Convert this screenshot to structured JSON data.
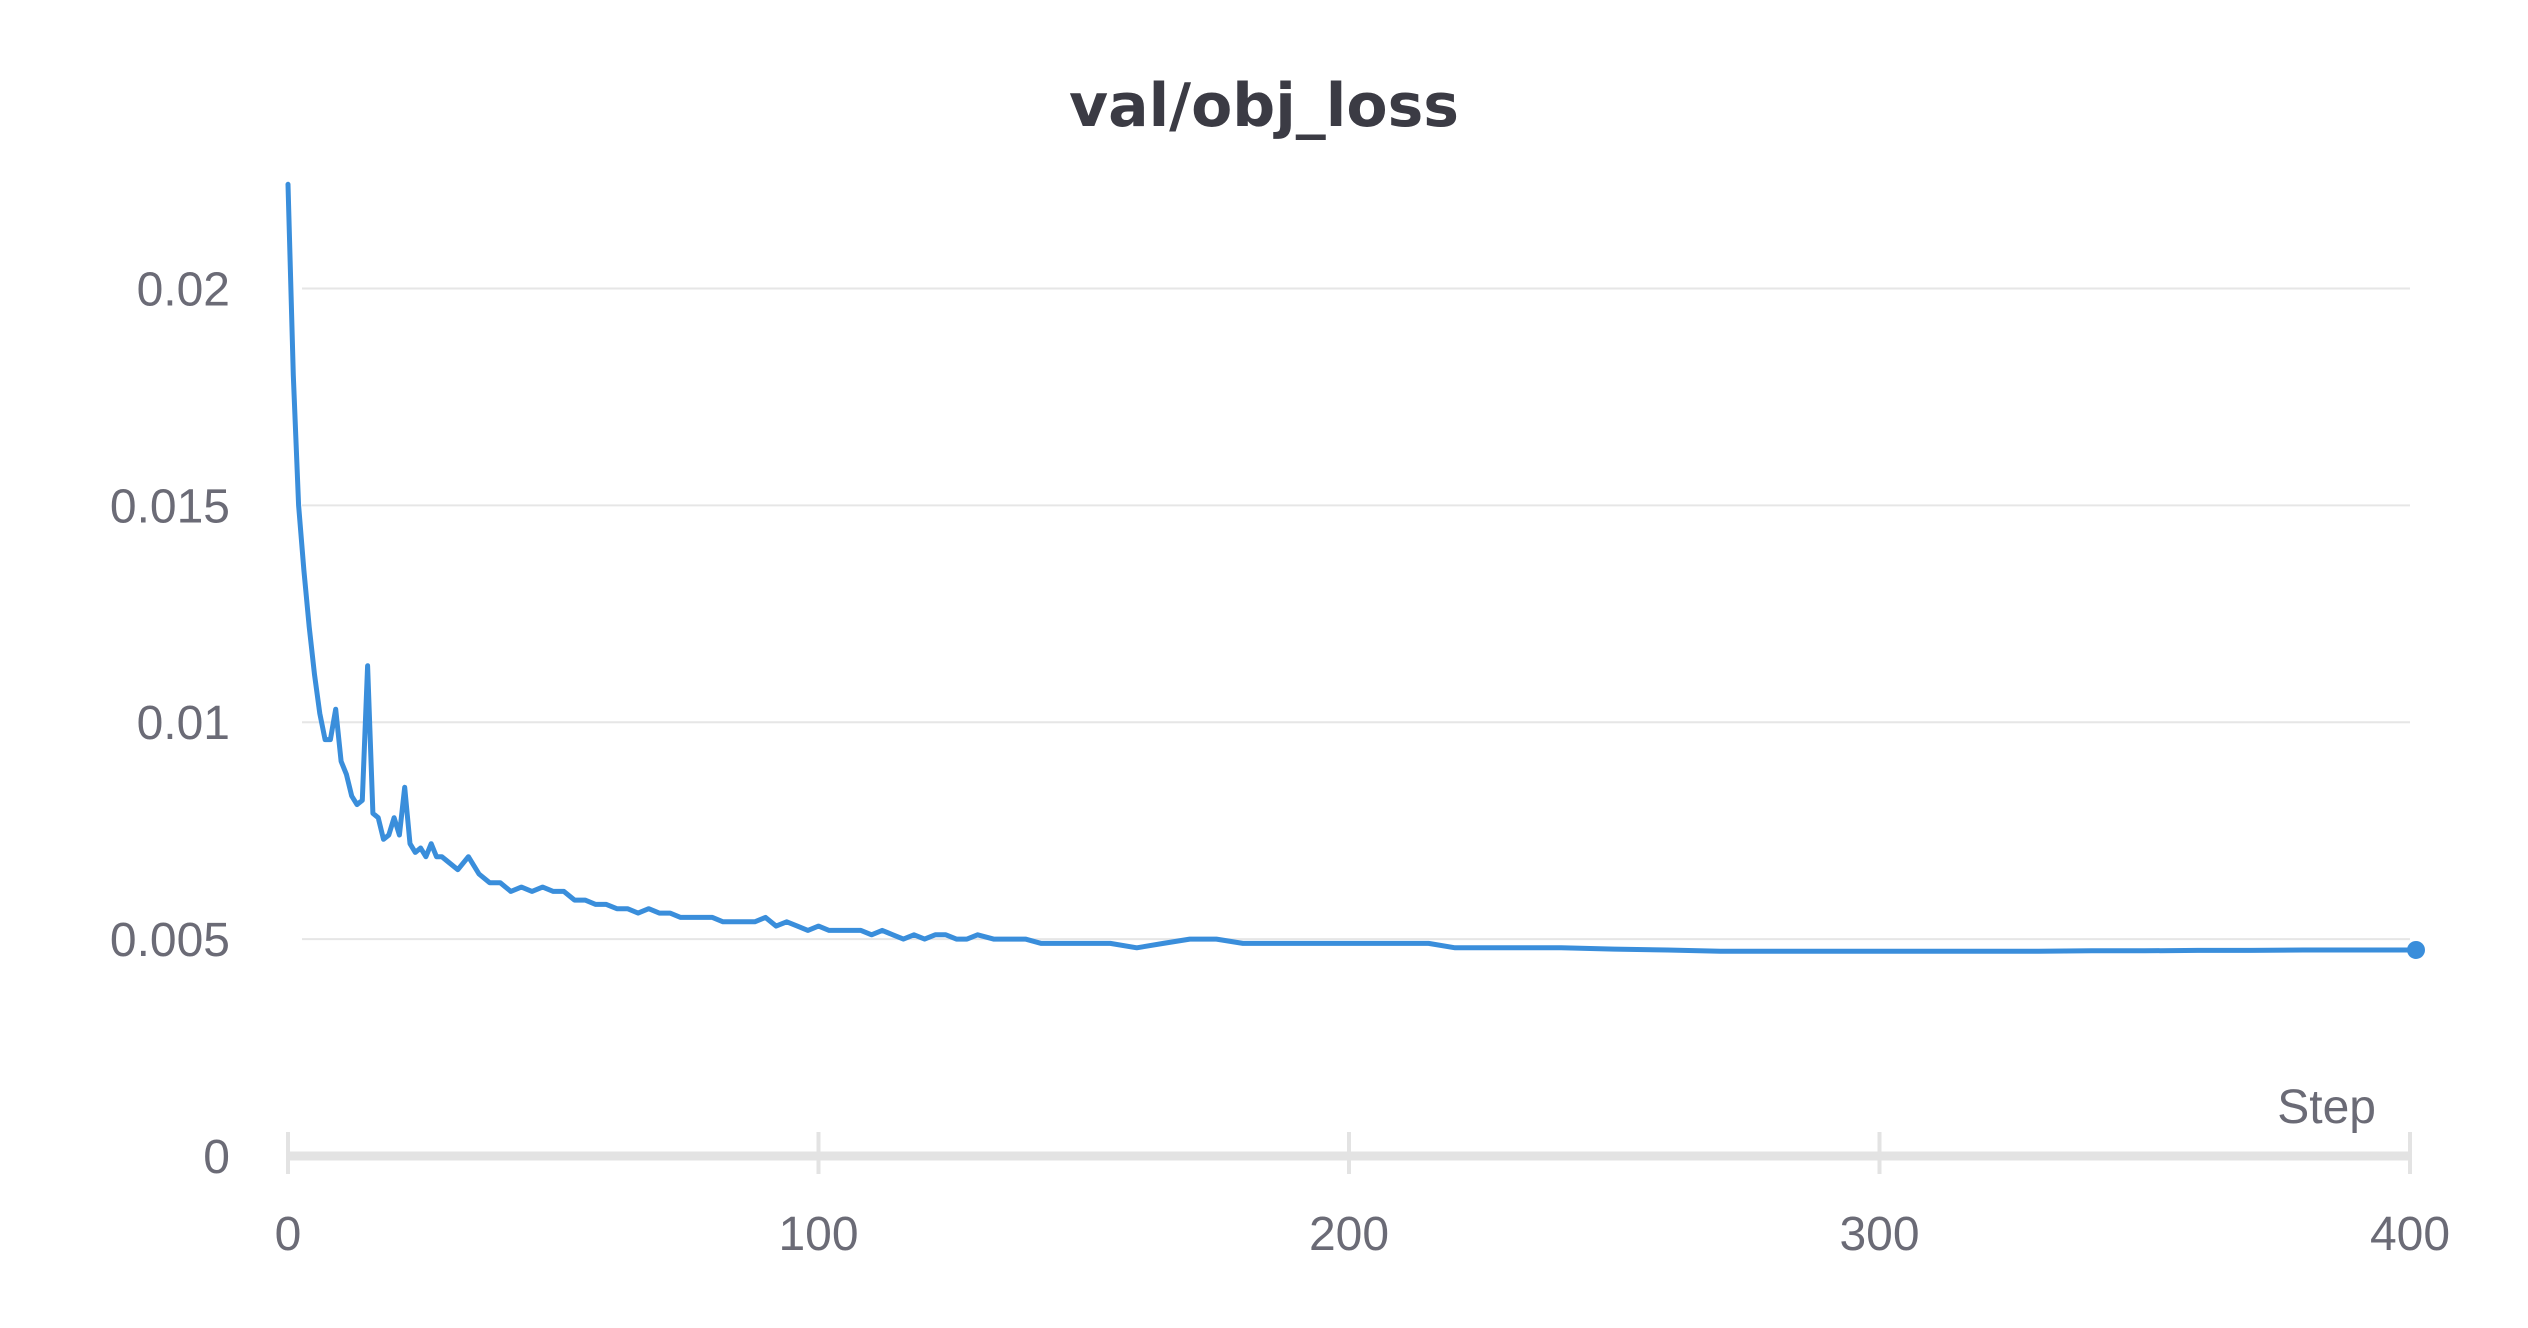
{
  "chart_data": {
    "type": "line",
    "title": "val/obj_loss",
    "xlabel": "Step",
    "ylabel": "",
    "xlim": [
      0,
      400
    ],
    "ylim": [
      0,
      0.0225
    ],
    "x_ticks": [
      0,
      100,
      200,
      300,
      400
    ],
    "x_tick_labels": [
      "0",
      "100",
      "200",
      "300",
      "400"
    ],
    "y_ticks": [
      0,
      0.005,
      0.01,
      0.015,
      0.02
    ],
    "y_tick_labels": [
      "0",
      "0.005",
      "0.01",
      "0.015",
      "0.02"
    ],
    "grid": true,
    "color": "#3a8edb",
    "series": [
      {
        "x": [
          0,
          1,
          2,
          3,
          4,
          5,
          6,
          7,
          8,
          9,
          10,
          11,
          12,
          13,
          14,
          15,
          16,
          17,
          18,
          19,
          20,
          21,
          22,
          23,
          24,
          25,
          26,
          27,
          28,
          29,
          30,
          32,
          34,
          36,
          38,
          40,
          42,
          44,
          46,
          48,
          50,
          52,
          54,
          56,
          58,
          60,
          62,
          64,
          66,
          68,
          70,
          72,
          74,
          76,
          78,
          80,
          82,
          84,
          86,
          88,
          90,
          92,
          94,
          96,
          98,
          100,
          102,
          104,
          106,
          108,
          110,
          112,
          114,
          116,
          118,
          120,
          122,
          124,
          126,
          128,
          130,
          133,
          136,
          139,
          142,
          145,
          148,
          151,
          155,
          160,
          165,
          170,
          175,
          180,
          185,
          190,
          195,
          200,
          205,
          210,
          215,
          220,
          225,
          230,
          240,
          250,
          260,
          270,
          280,
          290,
          300,
          310,
          320,
          330,
          340,
          350,
          360,
          370,
          380,
          390,
          400
        ],
        "values": [
          0.0224,
          0.018,
          0.015,
          0.0135,
          0.0122,
          0.0111,
          0.0102,
          0.0096,
          0.0096,
          0.0103,
          0.0091,
          0.0088,
          0.0083,
          0.0081,
          0.0082,
          0.0113,
          0.0079,
          0.0078,
          0.0073,
          0.0074,
          0.0078,
          0.0074,
          0.0085,
          0.0072,
          0.007,
          0.0071,
          0.0069,
          0.0072,
          0.0069,
          0.0069,
          0.0068,
          0.0066,
          0.0069,
          0.0065,
          0.0063,
          0.0063,
          0.0061,
          0.0062,
          0.0061,
          0.0062,
          0.0061,
          0.0061,
          0.0059,
          0.0059,
          0.0058,
          0.0058,
          0.0057,
          0.0057,
          0.0056,
          0.0057,
          0.0056,
          0.0056,
          0.0055,
          0.0055,
          0.0055,
          0.0055,
          0.0054,
          0.0054,
          0.0054,
          0.0054,
          0.0055,
          0.0053,
          0.0054,
          0.0053,
          0.0052,
          0.0053,
          0.0052,
          0.0052,
          0.0052,
          0.0052,
          0.0051,
          0.0052,
          0.0051,
          0.005,
          0.0051,
          0.005,
          0.0051,
          0.0051,
          0.005,
          0.005,
          0.0051,
          0.005,
          0.005,
          0.005,
          0.0049,
          0.0049,
          0.0049,
          0.0049,
          0.0049,
          0.0048,
          0.0049,
          0.005,
          0.005,
          0.0049,
          0.0049,
          0.0049,
          0.0049,
          0.0049,
          0.0049,
          0.0049,
          0.0049,
          0.0048,
          0.0048,
          0.0048,
          0.0048,
          0.00477,
          0.00475,
          0.00472,
          0.00472,
          0.00472,
          0.00472,
          0.00472,
          0.00472,
          0.00472,
          0.00473,
          0.00473,
          0.00474,
          0.00474,
          0.00475,
          0.00475,
          0.00475
        ]
      }
    ]
  }
}
